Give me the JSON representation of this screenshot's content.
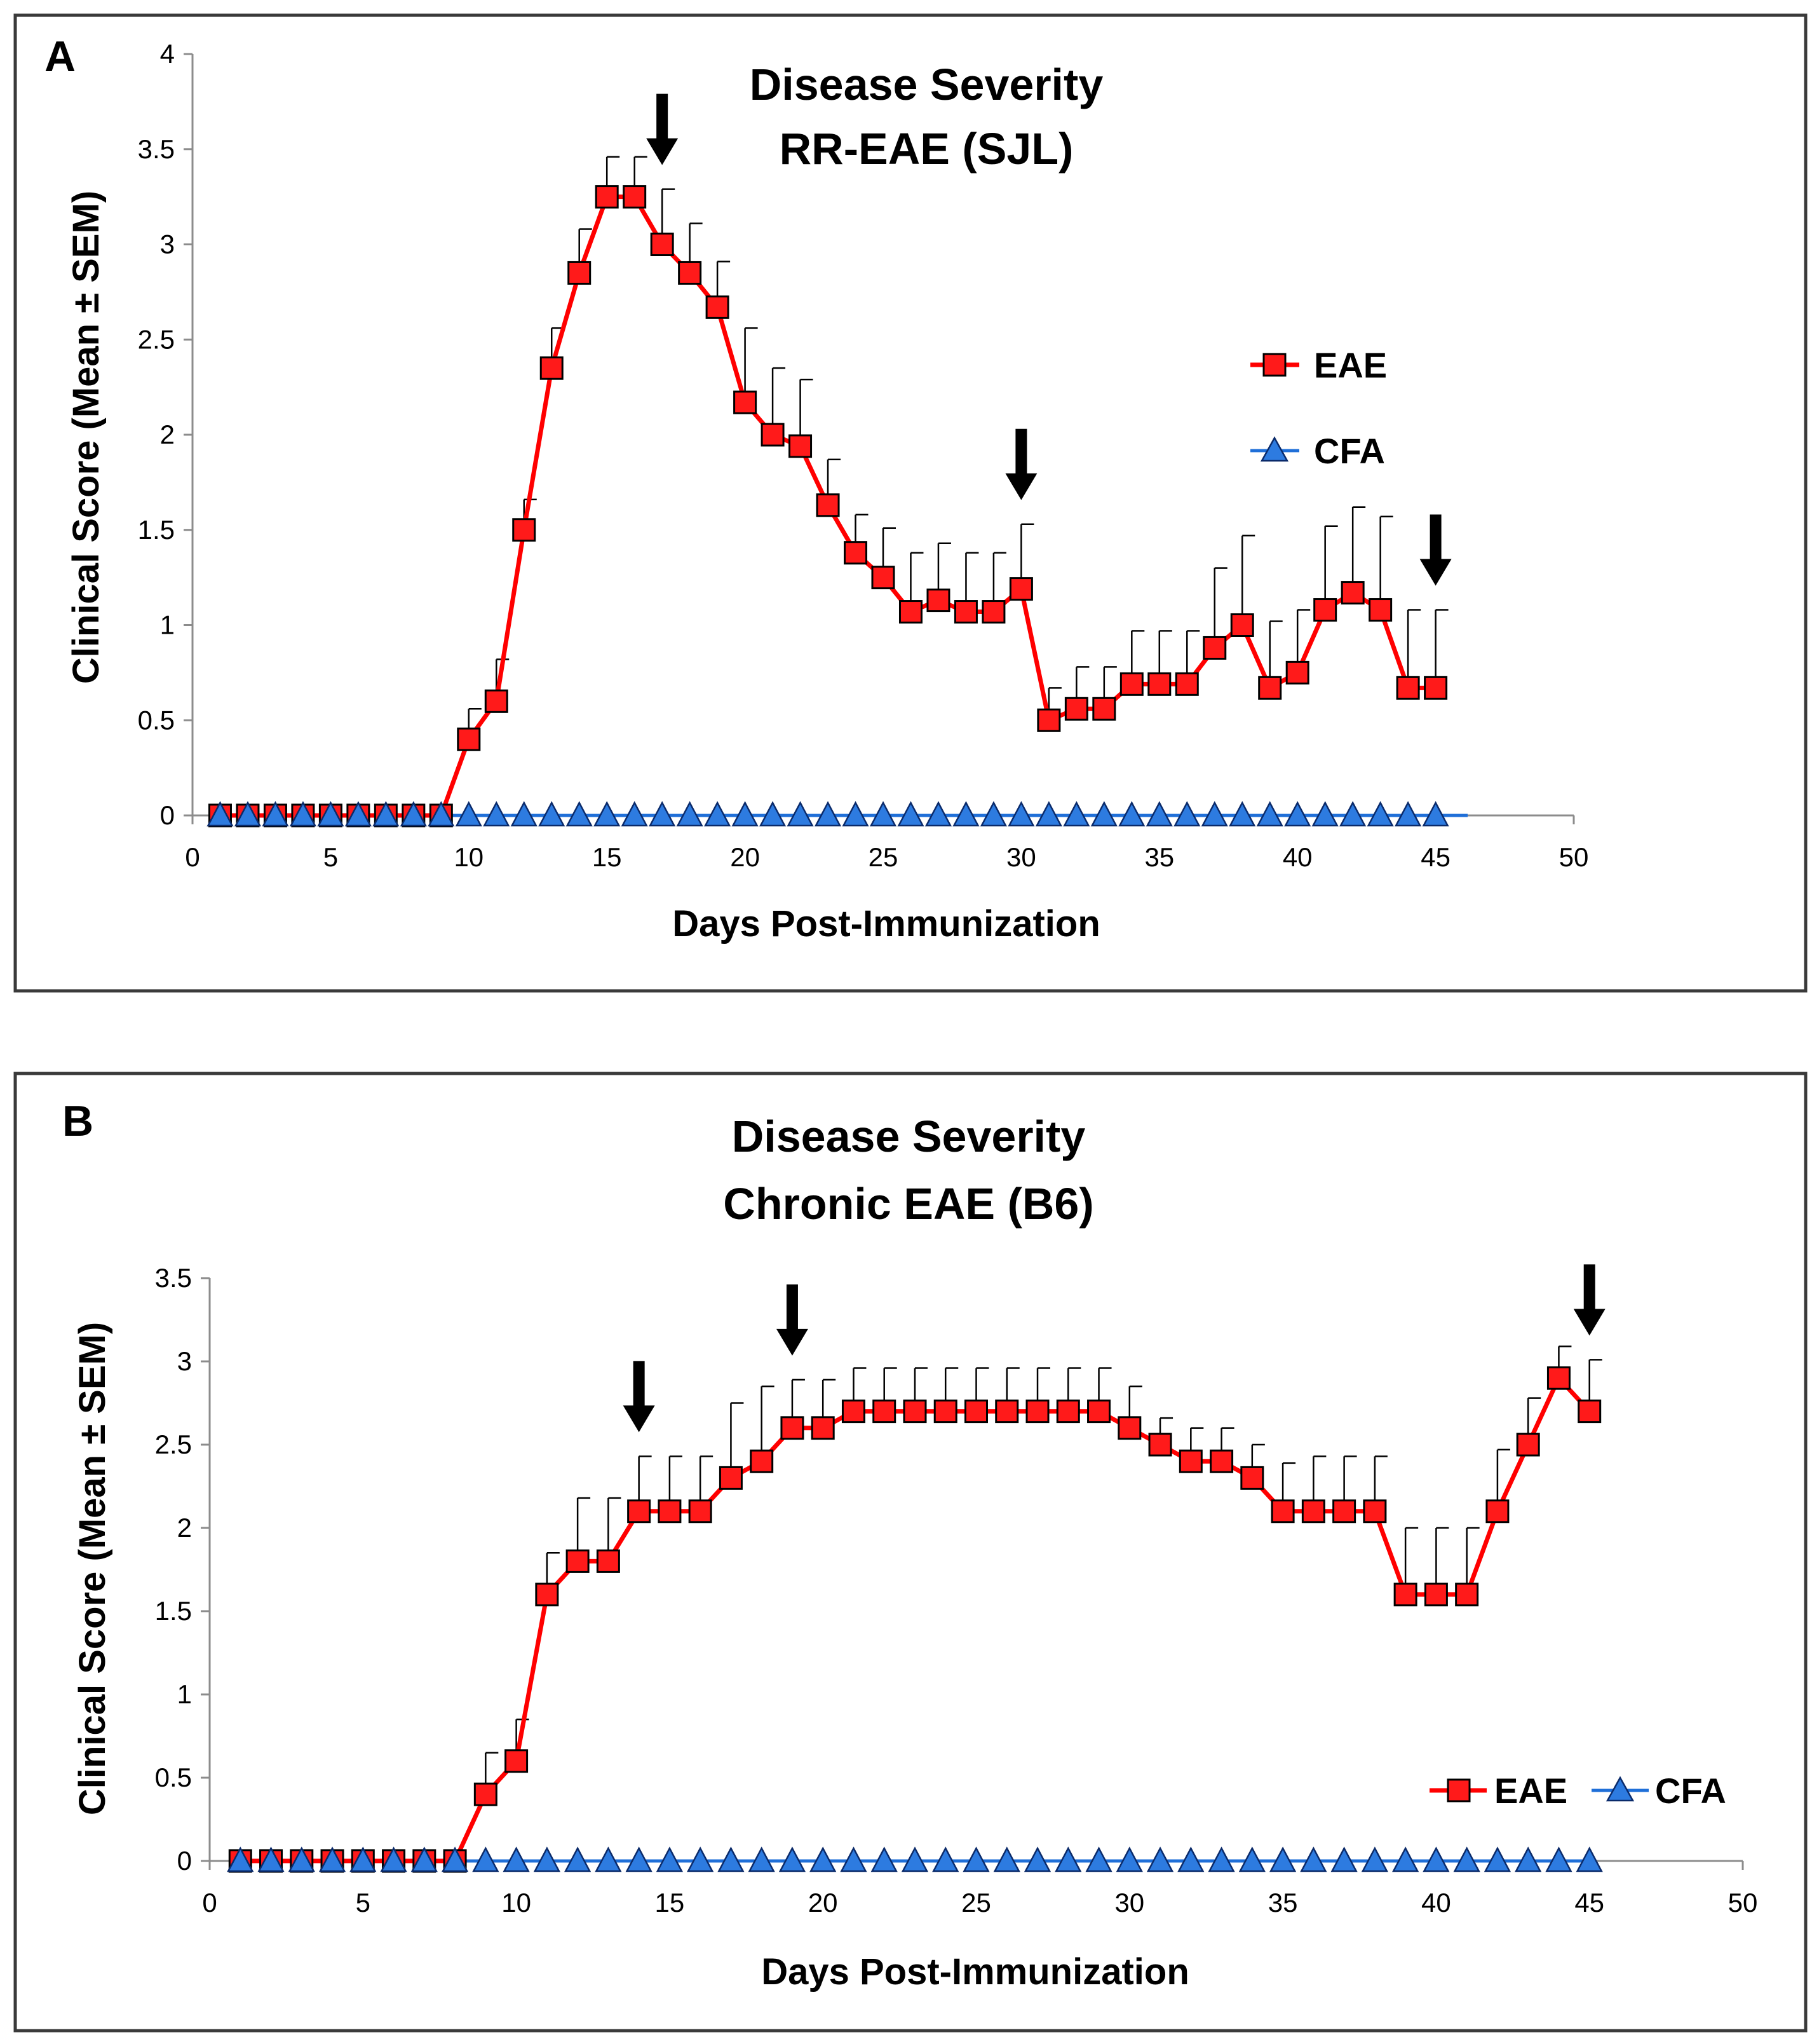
{
  "colors": {
    "eae": "#ff1a1a",
    "cfa": "#2d7be0",
    "frame": "#3a3a3a"
  },
  "chart_data": [
    {
      "panel": "A",
      "type": "line",
      "title": "Disease Severity",
      "subtitle": "RR-EAE (SJL)",
      "xlabel": "Days Post-Immunization",
      "ylabel": "Clinical Score (Mean ± SEM)",
      "xlim": [
        0,
        50
      ],
      "ylim": [
        0,
        4
      ],
      "x_ticks": [
        "0",
        "5",
        "10",
        "15",
        "20",
        "25",
        "30",
        "35",
        "40",
        "45",
        "50"
      ],
      "y_ticks": [
        "0",
        "0.5",
        "1",
        "1.5",
        "2",
        "2.5",
        "3",
        "3.5",
        "4"
      ],
      "legend_position": "right",
      "arrows_at_days": [
        17,
        30,
        45
      ],
      "series": [
        {
          "name": "EAE",
          "x": [
            1,
            2,
            3,
            4,
            5,
            6,
            7,
            8,
            9,
            10,
            11,
            12,
            13,
            14,
            15,
            16,
            17,
            18,
            19,
            20,
            21,
            22,
            23,
            24,
            25,
            26,
            27,
            28,
            29,
            30,
            31,
            32,
            33,
            34,
            35,
            36,
            37,
            38,
            39,
            40,
            41,
            42,
            43,
            44,
            45
          ],
          "values": [
            0,
            0,
            0,
            0,
            0,
            0,
            0,
            0,
            0,
            0.4,
            0.6,
            1.5,
            2.35,
            2.85,
            3.25,
            3.25,
            3.0,
            2.85,
            2.67,
            2.17,
            2.0,
            1.94,
            1.63,
            1.38,
            1.25,
            1.07,
            1.13,
            1.07,
            1.07,
            1.19,
            0.5,
            0.56,
            0.56,
            0.69,
            0.69,
            0.69,
            0.88,
            1.0,
            0.67,
            0.75,
            1.08,
            1.17,
            1.08,
            0.67,
            0.67
          ],
          "sem": [
            0,
            0,
            0,
            0,
            0,
            0,
            0,
            0,
            0,
            0.16,
            0.22,
            0.16,
            0.21,
            0.23,
            0.21,
            0.21,
            0.29,
            0.26,
            0.24,
            0.39,
            0.35,
            0.35,
            0.24,
            0.2,
            0.26,
            0.31,
            0.3,
            0.31,
            0.31,
            0.34,
            0.17,
            0.22,
            0.22,
            0.28,
            0.28,
            0.28,
            0.42,
            0.47,
            0.35,
            0.33,
            0.44,
            0.45,
            0.49,
            0.41,
            0.41
          ]
        },
        {
          "name": "CFA",
          "x": [
            1,
            2,
            3,
            4,
            5,
            6,
            7,
            8,
            9,
            10,
            11,
            12,
            13,
            14,
            15,
            16,
            17,
            18,
            19,
            20,
            21,
            22,
            23,
            24,
            25,
            26,
            27,
            28,
            29,
            30,
            31,
            32,
            33,
            34,
            35,
            36,
            37,
            38,
            39,
            40,
            41,
            42,
            43,
            44,
            45
          ],
          "values": [
            0,
            0,
            0,
            0,
            0,
            0,
            0,
            0,
            0,
            0,
            0,
            0,
            0,
            0,
            0,
            0,
            0,
            0,
            0,
            0,
            0,
            0,
            0,
            0,
            0,
            0,
            0,
            0,
            0,
            0,
            0,
            0,
            0,
            0,
            0,
            0,
            0,
            0,
            0,
            0,
            0,
            0,
            0,
            0,
            0
          ]
        }
      ]
    },
    {
      "panel": "B",
      "type": "line",
      "title": "Disease Severity",
      "subtitle": "Chronic EAE (B6)",
      "xlabel": "Days Post-Immunization",
      "ylabel": "Clinical Score (Mean ± SEM)",
      "xlim": [
        0,
        50
      ],
      "ylim": [
        0,
        3.5
      ],
      "x_ticks": [
        "0",
        "5",
        "10",
        "15",
        "20",
        "25",
        "30",
        "35",
        "40",
        "45",
        "50"
      ],
      "y_ticks": [
        "0",
        "0.5",
        "1",
        "1.5",
        "2",
        "2.5",
        "3",
        "3.5"
      ],
      "legend_position": "bottom-right",
      "arrows_at_days": [
        14,
        19,
        45
      ],
      "series": [
        {
          "name": "EAE",
          "x": [
            1,
            2,
            3,
            4,
            5,
            6,
            7,
            8,
            9,
            10,
            11,
            12,
            13,
            14,
            15,
            16,
            17,
            18,
            19,
            20,
            21,
            22,
            23,
            24,
            25,
            26,
            27,
            28,
            29,
            30,
            31,
            32,
            33,
            34,
            35,
            36,
            37,
            38,
            39,
            40,
            41,
            42,
            43,
            44,
            45
          ],
          "values": [
            0,
            0,
            0,
            0,
            0,
            0,
            0,
            0,
            0.4,
            0.6,
            1.6,
            1.8,
            1.8,
            2.1,
            2.1,
            2.1,
            2.3,
            2.4,
            2.6,
            2.6,
            2.7,
            2.7,
            2.7,
            2.7,
            2.7,
            2.7,
            2.7,
            2.7,
            2.7,
            2.6,
            2.5,
            2.4,
            2.4,
            2.3,
            2.1,
            2.1,
            2.1,
            2.1,
            1.6,
            1.6,
            1.6,
            2.1,
            2.5,
            2.9,
            2.7
          ],
          "sem": [
            0,
            0,
            0,
            0,
            0,
            0,
            0,
            0,
            0.25,
            0.25,
            0.25,
            0.38,
            0.38,
            0.33,
            0.33,
            0.33,
            0.45,
            0.45,
            0.29,
            0.29,
            0.26,
            0.26,
            0.26,
            0.26,
            0.26,
            0.26,
            0.26,
            0.26,
            0.26,
            0.25,
            0.16,
            0.2,
            0.2,
            0.2,
            0.29,
            0.33,
            0.33,
            0.33,
            0.4,
            0.4,
            0.4,
            0.37,
            0.28,
            0.19,
            0.31
          ]
        },
        {
          "name": "CFA",
          "x": [
            1,
            2,
            3,
            4,
            5,
            6,
            7,
            8,
            9,
            10,
            11,
            12,
            13,
            14,
            15,
            16,
            17,
            18,
            19,
            20,
            21,
            22,
            23,
            24,
            25,
            26,
            27,
            28,
            29,
            30,
            31,
            32,
            33,
            34,
            35,
            36,
            37,
            38,
            39,
            40,
            41,
            42,
            43,
            44,
            45
          ],
          "values": [
            0,
            0,
            0,
            0,
            0,
            0,
            0,
            0,
            0,
            0,
            0,
            0,
            0,
            0,
            0,
            0,
            0,
            0,
            0,
            0,
            0,
            0,
            0,
            0,
            0,
            0,
            0,
            0,
            0,
            0,
            0,
            0,
            0,
            0,
            0,
            0,
            0,
            0,
            0,
            0,
            0,
            0,
            0,
            0,
            0
          ]
        }
      ]
    }
  ]
}
